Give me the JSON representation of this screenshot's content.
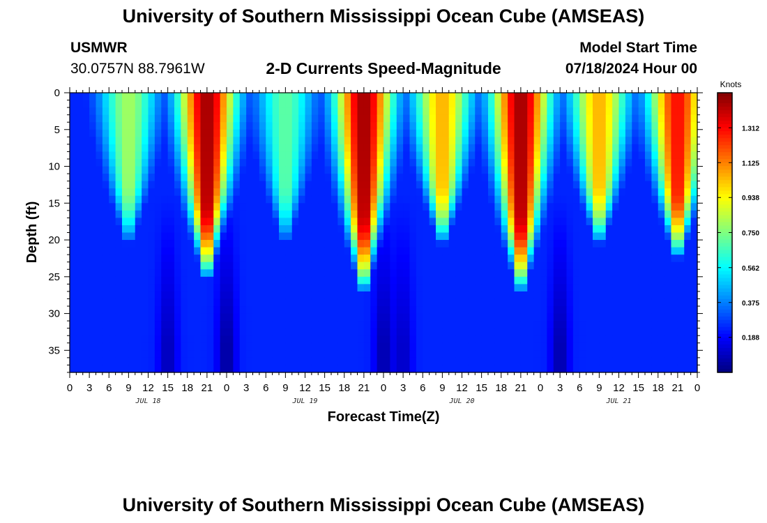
{
  "header": {
    "title": "University of Southern Mississippi Ocean Cube (AMSEAS)",
    "station": "USMWR",
    "coords": "30.0757N  88.7961W",
    "subtitle": "2-D Currents Speed-Magnitude",
    "model_start_label": "Model Start Time",
    "model_start_value": "07/18/2024 Hour 00"
  },
  "footer": {
    "title": "University of Southern Mississippi Ocean Cube (AMSEAS)"
  },
  "chart_data": {
    "type": "heatmap",
    "title": "2-D Currents Speed-Magnitude",
    "xlabel": "Forecast Time(Z)",
    "ylabel": "Depth (ft)",
    "xlim": [
      0,
      96
    ],
    "ylim": [
      38,
      0
    ],
    "x_ticks": [
      0,
      3,
      6,
      9,
      12,
      15,
      18,
      21,
      24,
      27,
      30,
      33,
      36,
      39,
      42,
      45,
      48,
      51,
      54,
      57,
      60,
      63,
      66,
      69,
      72,
      75,
      78,
      81,
      84,
      87,
      90,
      93,
      96
    ],
    "x_tick_labels": [
      "0",
      "3",
      "6",
      "9",
      "12",
      "15",
      "18",
      "21",
      "0",
      "3",
      "6",
      "9",
      "12",
      "15",
      "18",
      "21",
      "0",
      "3",
      "6",
      "9",
      "12",
      "15",
      "18",
      "21",
      "0",
      "3",
      "6",
      "9",
      "12",
      "15",
      "18",
      "21",
      "0"
    ],
    "y_ticks": [
      0,
      5,
      10,
      15,
      20,
      25,
      30,
      35
    ],
    "y_tick_labels": [
      "0",
      "5",
      "10",
      "15",
      "20",
      "25",
      "30",
      "35"
    ],
    "date_labels": [
      {
        "x": 12,
        "label": "JUL 18"
      },
      {
        "x": 36,
        "label": "JUL 19"
      },
      {
        "x": 60,
        "label": "JUL 20"
      },
      {
        "x": 84,
        "label": "JUL 21"
      }
    ],
    "colorbar": {
      "unit": "Knots",
      "min": 0.0,
      "max": 1.5,
      "ticks": [
        0.188,
        0.375,
        0.562,
        0.75,
        0.938,
        1.125,
        1.312
      ],
      "tick_labels": [
        "0.188",
        "0.375",
        "0.562",
        "0.750",
        "0.938",
        "1.125",
        "1.312"
      ],
      "colormap": "jet"
    },
    "features": [
      {
        "kind": "surface_max",
        "center_hour": 9,
        "depth_extent_ft": 22,
        "peak_knots": 0.8
      },
      {
        "kind": "surface_max",
        "center_hour": 21,
        "depth_extent_ft": 27,
        "peak_knots": 1.45
      },
      {
        "kind": "surface_max",
        "center_hour": 33,
        "depth_extent_ft": 22,
        "peak_knots": 0.7
      },
      {
        "kind": "surface_max",
        "center_hour": 45,
        "depth_extent_ft": 29,
        "peak_knots": 1.45
      },
      {
        "kind": "surface_max",
        "center_hour": 57,
        "depth_extent_ft": 22,
        "peak_knots": 1.05
      },
      {
        "kind": "surface_max",
        "center_hour": 69,
        "depth_extent_ft": 29,
        "peak_knots": 1.45
      },
      {
        "kind": "surface_max",
        "center_hour": 81,
        "depth_extent_ft": 22,
        "peak_knots": 1.05
      },
      {
        "kind": "surface_max",
        "center_hour": 93,
        "depth_extent_ft": 24,
        "peak_knots": 1.3
      },
      {
        "kind": "deep_min",
        "center_hour": 15,
        "min_knots": 0.08
      },
      {
        "kind": "deep_min",
        "center_hour": 24,
        "min_knots": 0.04
      },
      {
        "kind": "deep_min",
        "center_hour": 48,
        "min_knots": 0.06
      },
      {
        "kind": "deep_min",
        "center_hour": 51,
        "min_knots": 0.1
      },
      {
        "kind": "deep_min",
        "center_hour": 75,
        "min_knots": 0.06
      }
    ]
  }
}
